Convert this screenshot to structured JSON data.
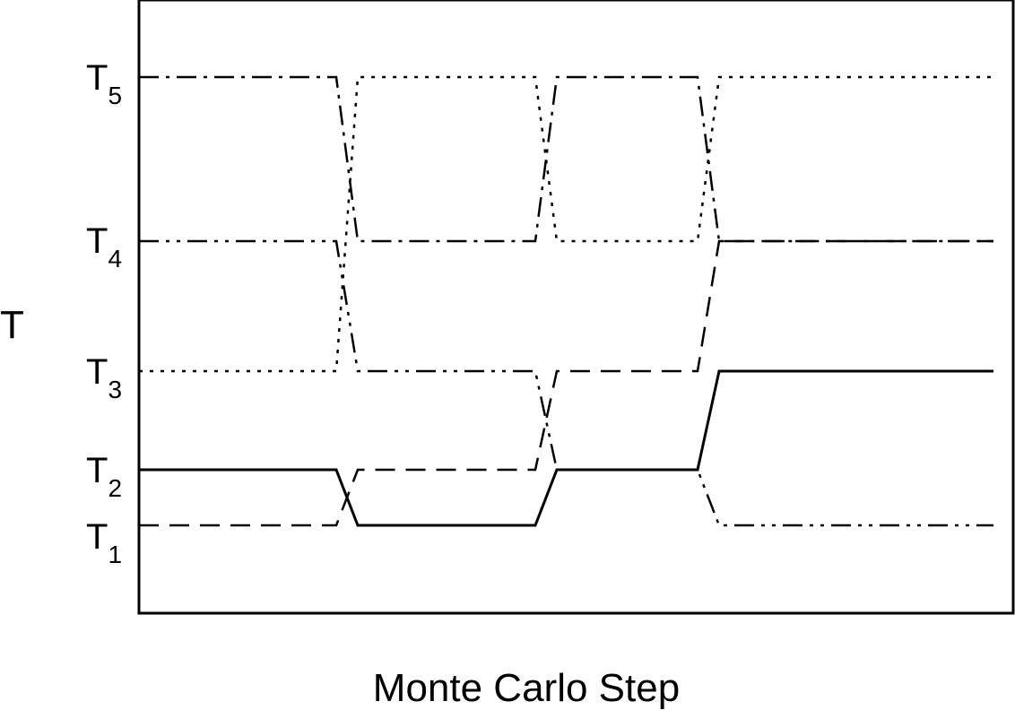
{
  "diagram": {
    "y_axis_label": "T",
    "x_axis_label": "Monte Carlo Step",
    "levels": [
      {
        "base": "T",
        "sub": "1"
      },
      {
        "base": "T",
        "sub": "2"
      },
      {
        "base": "T",
        "sub": "3"
      },
      {
        "base": "T",
        "sub": "4"
      },
      {
        "base": "T",
        "sub": "5"
      }
    ],
    "replicas": [
      {
        "style": "solid",
        "path": [
          2,
          2,
          1,
          1,
          2,
          2,
          3,
          3
        ]
      },
      {
        "style": "dash",
        "path": [
          1,
          1,
          2,
          2,
          3,
          3,
          4,
          4
        ]
      },
      {
        "style": "dash-dot",
        "path": [
          5,
          5,
          4,
          4,
          5,
          5,
          4,
          4
        ]
      },
      {
        "style": "dash-dot-dot",
        "path": [
          4,
          4,
          3,
          3,
          2,
          2,
          1,
          1
        ]
      },
      {
        "style": "dot",
        "path": [
          3,
          3,
          5,
          5,
          4,
          4,
          5,
          5
        ]
      }
    ],
    "colors": {
      "line": "#000000",
      "background": "#ffffff"
    }
  }
}
